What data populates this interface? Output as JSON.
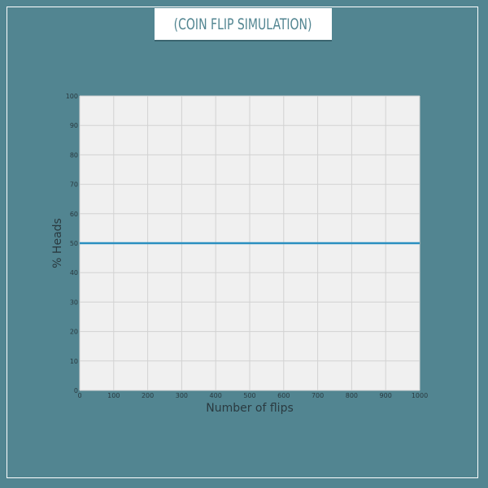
{
  "title": "(COIN FLIP SIMULATION)",
  "colors": {
    "background": "#528591",
    "plot_background": "#f0f0f0",
    "grid": "#d2d2d2",
    "series": "#2a8fc0",
    "frame": "#ffffff",
    "axis_text": "#2a3a40"
  },
  "chart_data": {
    "type": "line",
    "title": "(COIN FLIP SIMULATION)",
    "xlabel": "Number of flips",
    "ylabel": "% Heads",
    "xlim": [
      0,
      1000
    ],
    "ylim": [
      0,
      100
    ],
    "x_ticks": [
      "0",
      "100",
      "200",
      "300",
      "400",
      "500",
      "600",
      "700",
      "800",
      "900",
      "1000"
    ],
    "y_ticks": [
      "0",
      "10",
      "20",
      "30",
      "40",
      "50",
      "60",
      "70",
      "80",
      "90",
      "100"
    ],
    "grid": true,
    "series": [
      {
        "x": [
          0,
          1000
        ],
        "values": [
          50,
          50
        ]
      }
    ]
  }
}
